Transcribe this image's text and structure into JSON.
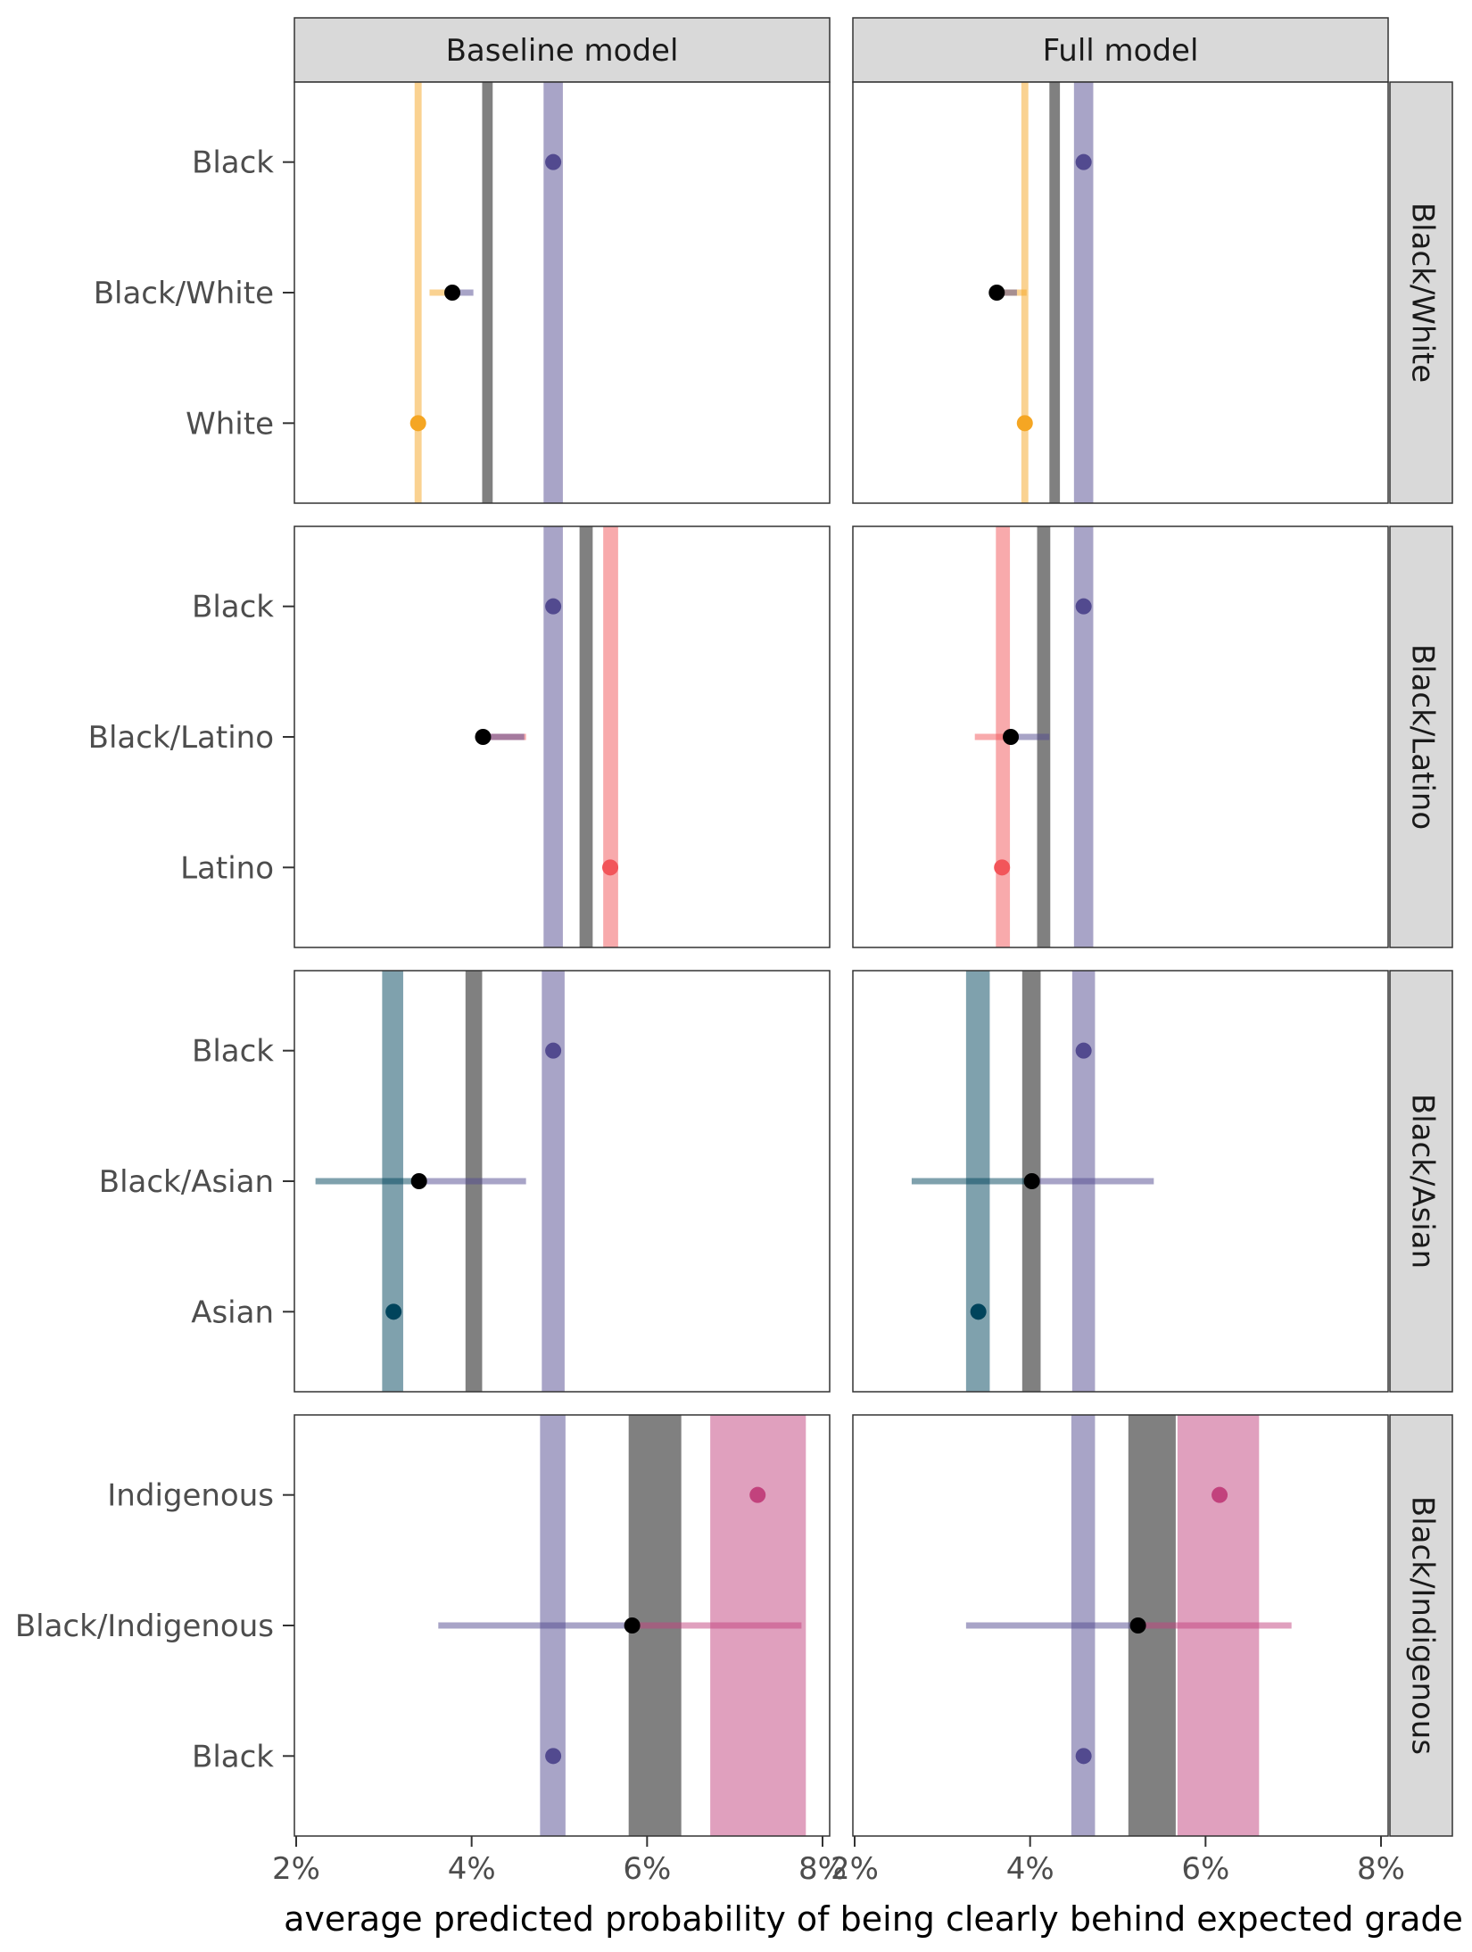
{
  "chart_data": {
    "type": "faceted-dot-interval",
    "xlabel": "average predicted probability of being clearly behind expected grade",
    "xlim": [
      0.02,
      0.08
    ],
    "xticks": [
      0.02,
      0.04,
      0.06,
      0.08
    ],
    "xtick_labels": [
      "2%",
      "4%",
      "6%",
      "8%"
    ],
    "columns": [
      "Baseline model",
      "Full model"
    ],
    "colors": {
      "Black": "#524a8f",
      "White": "#f5a623",
      "Latino": "#f2555a",
      "Asian": "#00445c",
      "Indigenous": "#c2427d",
      "multiracial": "#000000",
      "reference_band": "#808080"
    },
    "rows": [
      {
        "label": "Black/White",
        "groups": [
          "Black",
          "Black/White",
          "White"
        ],
        "panels": {
          "Baseline model": {
            "bands": [
              {
                "group": "White",
                "lo": 0.0335,
                "hi": 0.0343
              },
              {
                "group": "multiracial",
                "lo": 0.0412,
                "hi": 0.0424
              },
              {
                "group": "Black",
                "lo": 0.0482,
                "hi": 0.0504
              }
            ],
            "points": [
              {
                "group": "Black",
                "value": 0.0493
              },
              {
                "group": "Black/White",
                "value": 0.0378
              },
              {
                "group": "White",
                "value": 0.0339
              }
            ],
            "intervals": [
              {
                "group": "White",
                "lo": 0.0352,
                "hi": 0.0378
              },
              {
                "group": "Black",
                "lo": 0.0378,
                "hi": 0.0402
              }
            ]
          },
          "Full model": {
            "bands": [
              {
                "group": "White",
                "lo": 0.039,
                "hi": 0.0398
              },
              {
                "group": "multiracial",
                "lo": 0.0422,
                "hi": 0.0434
              },
              {
                "group": "Black",
                "lo": 0.045,
                "hi": 0.0472
              }
            ],
            "points": [
              {
                "group": "Black",
                "value": 0.0461
              },
              {
                "group": "Black/White",
                "value": 0.0362
              },
              {
                "group": "White",
                "value": 0.0394
              }
            ],
            "intervals": [
              {
                "group": "White",
                "lo": 0.0362,
                "hi": 0.0396
              },
              {
                "group": "Black",
                "lo": 0.0362,
                "hi": 0.0385
              }
            ]
          }
        }
      },
      {
        "label": "Black/Latino",
        "groups": [
          "Black",
          "Black/Latino",
          "Latino"
        ],
        "panels": {
          "Baseline model": {
            "bands": [
              {
                "group": "Black",
                "lo": 0.0482,
                "hi": 0.0504
              },
              {
                "group": "multiracial",
                "lo": 0.0523,
                "hi": 0.0538
              },
              {
                "group": "Latino",
                "lo": 0.055,
                "hi": 0.0567
              }
            ],
            "points": [
              {
                "group": "Black",
                "value": 0.0493
              },
              {
                "group": "Black/Latino",
                "value": 0.0413
              },
              {
                "group": "Latino",
                "value": 0.0558
              }
            ],
            "intervals": [
              {
                "group": "Latino",
                "lo": 0.0413,
                "hi": 0.0462
              },
              {
                "group": "Black",
                "lo": 0.0413,
                "hi": 0.046
              }
            ]
          },
          "Full model": {
            "bands": [
              {
                "group": "Latino",
                "lo": 0.0361,
                "hi": 0.0377
              },
              {
                "group": "multiracial",
                "lo": 0.0408,
                "hi": 0.0423
              },
              {
                "group": "Black",
                "lo": 0.045,
                "hi": 0.0472
              }
            ],
            "points": [
              {
                "group": "Black",
                "value": 0.0461
              },
              {
                "group": "Black/Latino",
                "value": 0.0378
              },
              {
                "group": "Latino",
                "value": 0.0368
              }
            ],
            "intervals": [
              {
                "group": "Latino",
                "lo": 0.0337,
                "hi": 0.0378
              },
              {
                "group": "Black",
                "lo": 0.0378,
                "hi": 0.0422
              }
            ]
          }
        }
      },
      {
        "label": "Black/Asian",
        "groups": [
          "Black",
          "Black/Asian",
          "Asian"
        ],
        "panels": {
          "Baseline model": {
            "bands": [
              {
                "group": "Asian",
                "lo": 0.0298,
                "hi": 0.0322
              },
              {
                "group": "multiracial",
                "lo": 0.0393,
                "hi": 0.0412
              },
              {
                "group": "Black",
                "lo": 0.048,
                "hi": 0.0506
              }
            ],
            "points": [
              {
                "group": "Black",
                "value": 0.0493
              },
              {
                "group": "Black/Asian",
                "value": 0.034
              },
              {
                "group": "Asian",
                "value": 0.0311
              }
            ],
            "intervals": [
              {
                "group": "Asian",
                "lo": 0.0222,
                "hi": 0.034
              },
              {
                "group": "Black",
                "lo": 0.034,
                "hi": 0.0462
              }
            ]
          },
          "Full model": {
            "bands": [
              {
                "group": "Asian",
                "lo": 0.0327,
                "hi": 0.0354
              },
              {
                "group": "multiracial",
                "lo": 0.0391,
                "hi": 0.0412
              },
              {
                "group": "Black",
                "lo": 0.0448,
                "hi": 0.0474
              }
            ],
            "points": [
              {
                "group": "Black",
                "value": 0.0461
              },
              {
                "group": "Black/Asian",
                "value": 0.0402
              },
              {
                "group": "Asian",
                "value": 0.0341
              }
            ],
            "intervals": [
              {
                "group": "Asian",
                "lo": 0.0265,
                "hi": 0.0402
              },
              {
                "group": "Black",
                "lo": 0.0402,
                "hi": 0.0541
              }
            ]
          }
        }
      },
      {
        "label": "Black/Indigenous",
        "groups": [
          "Indigenous",
          "Black/Indigenous",
          "Black"
        ],
        "panels": {
          "Baseline model": {
            "bands": [
              {
                "group": "Black",
                "lo": 0.0478,
                "hi": 0.0507
              },
              {
                "group": "multiracial",
                "lo": 0.0579,
                "hi": 0.0639
              },
              {
                "group": "Indigenous",
                "lo": 0.0672,
                "hi": 0.0781
              }
            ],
            "points": [
              {
                "group": "Indigenous",
                "value": 0.0726
              },
              {
                "group": "Black/Indigenous",
                "value": 0.0583
              },
              {
                "group": "Black",
                "value": 0.0493
              }
            ],
            "intervals": [
              {
                "group": "Black",
                "lo": 0.0362,
                "hi": 0.0583
              },
              {
                "group": "Indigenous",
                "lo": 0.0583,
                "hi": 0.0776
              }
            ]
          },
          "Full model": {
            "bands": [
              {
                "group": "Black",
                "lo": 0.0447,
                "hi": 0.0474
              },
              {
                "group": "multiracial",
                "lo": 0.0512,
                "hi": 0.0566
              },
              {
                "group": "Indigenous",
                "lo": 0.0568,
                "hi": 0.0661
              }
            ],
            "points": [
              {
                "group": "Indigenous",
                "value": 0.0616
              },
              {
                "group": "Black/Indigenous",
                "value": 0.0523
              },
              {
                "group": "Black",
                "value": 0.0461
              }
            ],
            "intervals": [
              {
                "group": "Black",
                "lo": 0.0327,
                "hi": 0.0523
              },
              {
                "group": "Indigenous",
                "lo": 0.0523,
                "hi": 0.0698
              }
            ]
          }
        }
      }
    ]
  }
}
